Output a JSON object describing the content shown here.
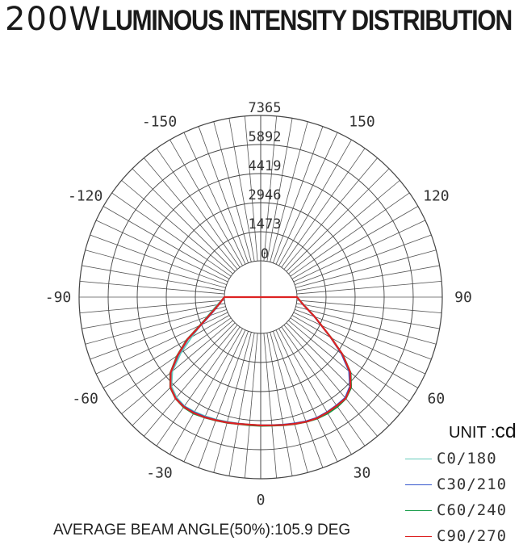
{
  "title": {
    "power": "200W",
    "text": "LUMINOUS INTENSITY DISTRIBUTION"
  },
  "unit": {
    "prefix": "UNIT :",
    "value": "cd"
  },
  "beam_angle_text": "AVERAGE BEAM ANGLE(50%):105.9 DEG",
  "chart_data": {
    "type": "polar",
    "title": "200W LUMINOUS INTENSITY DISTRIBUTION",
    "unit": "cd",
    "rmax": 7365,
    "radial_ticks": [
      0,
      1473,
      2946,
      4419,
      5892,
      7365
    ],
    "angle_ticks": [
      {
        "angle": 0,
        "label": "0"
      },
      {
        "angle": 30,
        "label": "30"
      },
      {
        "angle": 60,
        "label": "60"
      },
      {
        "angle": 90,
        "label": "90"
      },
      {
        "angle": 120,
        "label": "120"
      },
      {
        "angle": 150,
        "label": "150"
      },
      {
        "angle": -30,
        "label": "-30"
      },
      {
        "angle": -60,
        "label": "-60"
      },
      {
        "angle": -90,
        "label": "-90"
      },
      {
        "angle": -120,
        "label": "-120"
      },
      {
        "angle": -150,
        "label": "-150"
      }
    ],
    "grid": true,
    "legend_position": "bottom-right",
    "series": [
      {
        "name": "C0/180",
        "color": "#66ccbb",
        "angles": [
          -90,
          -80,
          -70,
          -60,
          -55,
          -50,
          -45,
          -40,
          -35,
          -30,
          -25,
          -20,
          -15,
          -10,
          -5,
          0,
          5,
          10,
          15,
          20,
          25,
          30,
          35,
          40,
          45,
          50,
          55,
          60,
          70,
          80,
          90
        ],
        "values": [
          0,
          380,
          1050,
          2200,
          3100,
          4000,
          4550,
          4800,
          4900,
          4870,
          4820,
          4760,
          4700,
          4660,
          4640,
          4650,
          4670,
          4720,
          4800,
          4880,
          4950,
          4920,
          4880,
          4850,
          4600,
          4050,
          3200,
          2250,
          1100,
          380,
          0
        ]
      },
      {
        "name": "C30/210",
        "color": "#3355cc",
        "angles": [
          -90,
          -80,
          -70,
          -60,
          -55,
          -50,
          -45,
          -40,
          -35,
          -30,
          -25,
          -20,
          -15,
          -10,
          -5,
          0,
          5,
          10,
          15,
          20,
          25,
          30,
          35,
          40,
          45,
          50,
          55,
          60,
          70,
          80,
          90
        ],
        "values": [
          0,
          300,
          900,
          2400,
          3250,
          4100,
          4620,
          4850,
          4920,
          4900,
          4850,
          4780,
          4720,
          4670,
          4650,
          4650,
          4670,
          4720,
          4780,
          4850,
          4900,
          4880,
          4850,
          4820,
          4550,
          4000,
          3150,
          2250,
          1050,
          330,
          0
        ]
      },
      {
        "name": "C60/240",
        "color": "#119944",
        "angles": [
          -90,
          -80,
          -70,
          -60,
          -55,
          -50,
          -45,
          -40,
          -35,
          -30,
          -25,
          -20,
          -15,
          -10,
          -5,
          0,
          5,
          10,
          15,
          20,
          25,
          30,
          35,
          40,
          45,
          50,
          55,
          60,
          70,
          80,
          90
        ],
        "values": [
          0,
          340,
          1000,
          2500,
          3350,
          4150,
          4650,
          4880,
          4980,
          4980,
          4900,
          4820,
          4760,
          4700,
          4680,
          4690,
          4700,
          4760,
          4830,
          4900,
          4960,
          4970,
          4950,
          4880,
          4650,
          4120,
          3250,
          2300,
          1080,
          350,
          0
        ]
      },
      {
        "name": "C90/270",
        "color": "#dd2222",
        "angles": [
          -90,
          -80,
          -70,
          -60,
          -55,
          -50,
          -45,
          -40,
          -35,
          -30,
          -25,
          -20,
          -15,
          -10,
          -5,
          0,
          5,
          10,
          15,
          20,
          25,
          30,
          35,
          40,
          45,
          50,
          55,
          60,
          70,
          80,
          90
        ],
        "values": [
          0,
          320,
          960,
          2450,
          3300,
          4120,
          4630,
          4870,
          4950,
          4940,
          4880,
          4800,
          4740,
          4680,
          4650,
          4660,
          4680,
          4740,
          4810,
          4880,
          4930,
          4910,
          4880,
          4860,
          4600,
          4080,
          3220,
          2280,
          1070,
          350,
          0
        ]
      }
    ]
  }
}
